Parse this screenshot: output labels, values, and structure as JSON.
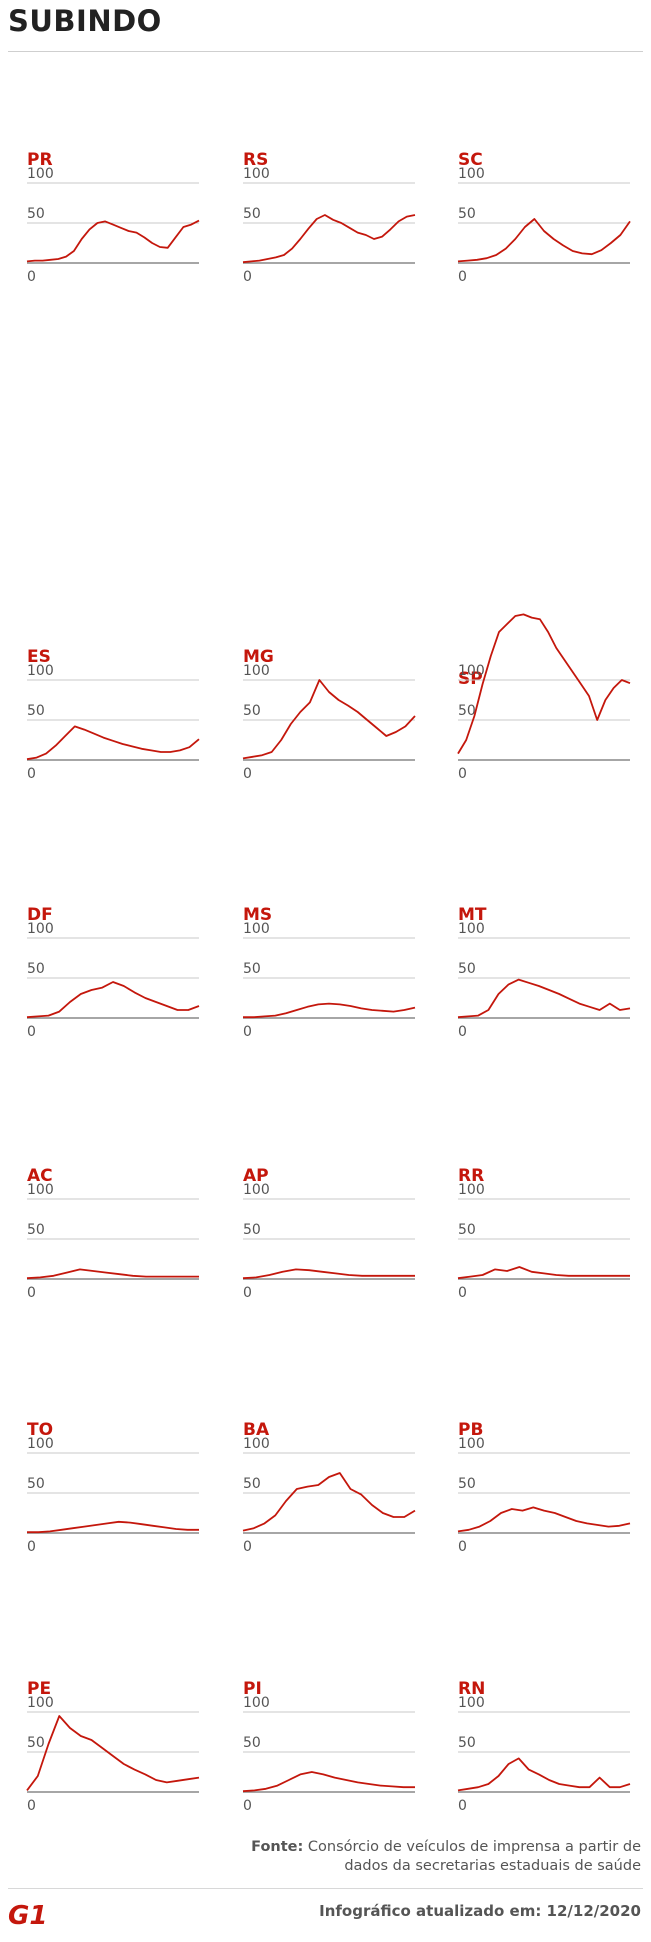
{
  "header": {
    "title": "SUBINDO"
  },
  "footer": {
    "source_label": "Fonte:",
    "source_text": "Consórcio de veículos de imprensa a partir de dados da secretarias estaduais de saúde",
    "logo_text": "G1",
    "updated": "Infográfico atualizado em: 12/12/2020"
  },
  "colors": {
    "series": "#c4170c",
    "label": "#c4170c",
    "grid": "#c8c8c8",
    "baseline": "#888888"
  },
  "chart_data": [
    {
      "type": "line",
      "title": "PR",
      "yticks": [
        0,
        50,
        100
      ],
      "values": [
        2,
        3,
        3,
        4,
        5,
        8,
        15,
        30,
        42,
        50,
        52,
        48,
        44,
        40,
        38,
        32,
        25,
        20,
        19,
        32,
        45,
        48,
        53
      ]
    },
    {
      "type": "line",
      "title": "RS",
      "yticks": [
        0,
        50,
        100
      ],
      "values": [
        1,
        2,
        3,
        5,
        7,
        10,
        18,
        30,
        43,
        55,
        60,
        54,
        50,
        44,
        38,
        35,
        30,
        33,
        42,
        52,
        58,
        60
      ]
    },
    {
      "type": "line",
      "title": "SC",
      "yticks": [
        0,
        50,
        100
      ],
      "values": [
        2,
        3,
        4,
        6,
        10,
        18,
        30,
        45,
        55,
        40,
        30,
        22,
        15,
        12,
        11,
        16,
        25,
        35,
        52
      ]
    },
    {
      "type": "line",
      "title": "SP",
      "yticks": [
        0,
        50,
        100
      ],
      "values": [
        8,
        25,
        55,
        95,
        130,
        160,
        170,
        180,
        182,
        178,
        176,
        160,
        140,
        125,
        110,
        95,
        80,
        50,
        75,
        90,
        100,
        96
      ]
    },
    {
      "type": "line",
      "title": "ES",
      "yticks": [
        0,
        50,
        100
      ],
      "values": [
        1,
        3,
        8,
        18,
        30,
        42,
        38,
        33,
        28,
        24,
        20,
        17,
        14,
        12,
        10,
        10,
        12,
        16,
        26
      ]
    },
    {
      "type": "line",
      "title": "MG",
      "yticks": [
        0,
        50,
        100
      ],
      "values": [
        2,
        4,
        6,
        10,
        25,
        45,
        60,
        72,
        100,
        85,
        75,
        68,
        60,
        50,
        40,
        30,
        35,
        42,
        55
      ]
    },
    {
      "type": "line",
      "title": "DF",
      "yticks": [
        0,
        50,
        100
      ],
      "values": [
        1,
        2,
        3,
        8,
        20,
        30,
        35,
        38,
        45,
        40,
        32,
        25,
        20,
        15,
        10,
        10,
        15
      ]
    },
    {
      "type": "line",
      "title": "MS",
      "yticks": [
        0,
        50,
        100
      ],
      "values": [
        1,
        1,
        2,
        3,
        6,
        10,
        14,
        17,
        18,
        17,
        15,
        12,
        10,
        9,
        8,
        10,
        13
      ]
    },
    {
      "type": "line",
      "title": "MT",
      "yticks": [
        0,
        50,
        100
      ],
      "values": [
        1,
        2,
        3,
        10,
        30,
        42,
        48,
        44,
        40,
        35,
        30,
        24,
        18,
        14,
        10,
        18,
        10,
        12
      ]
    },
    {
      "type": "line",
      "title": "AC",
      "yticks": [
        0,
        50,
        100
      ],
      "values": [
        1,
        2,
        4,
        8,
        12,
        10,
        8,
        6,
        4,
        3,
        3,
        3,
        3,
        3
      ]
    },
    {
      "type": "line",
      "title": "AP",
      "yticks": [
        0,
        50,
        100
      ],
      "values": [
        1,
        2,
        5,
        9,
        12,
        11,
        9,
        7,
        5,
        4,
        4,
        4,
        4,
        4
      ]
    },
    {
      "type": "line",
      "title": "RR",
      "yticks": [
        0,
        50,
        100
      ],
      "values": [
        1,
        3,
        5,
        12,
        10,
        15,
        9,
        7,
        5,
        4,
        4,
        4,
        4,
        4,
        4
      ]
    },
    {
      "type": "line",
      "title": "TO",
      "yticks": [
        0,
        50,
        100
      ],
      "values": [
        1,
        1,
        2,
        4,
        6,
        8,
        10,
        12,
        14,
        13,
        11,
        9,
        7,
        5,
        4,
        4
      ]
    },
    {
      "type": "line",
      "title": "BA",
      "yticks": [
        0,
        50,
        100
      ],
      "values": [
        3,
        6,
        12,
        22,
        40,
        55,
        58,
        60,
        70,
        75,
        55,
        48,
        35,
        25,
        20,
        20,
        28
      ]
    },
    {
      "type": "line",
      "title": "PB",
      "yticks": [
        0,
        50,
        100
      ],
      "values": [
        2,
        4,
        8,
        15,
        25,
        30,
        28,
        32,
        28,
        25,
        20,
        15,
        12,
        10,
        8,
        9,
        12
      ]
    },
    {
      "type": "line",
      "title": "PE",
      "yticks": [
        0,
        50,
        100
      ],
      "values": [
        2,
        20,
        60,
        95,
        80,
        70,
        65,
        55,
        45,
        35,
        28,
        22,
        15,
        12,
        14,
        16,
        18
      ]
    },
    {
      "type": "line",
      "title": "PI",
      "yticks": [
        0,
        50,
        100
      ],
      "values": [
        1,
        2,
        4,
        8,
        15,
        22,
        25,
        22,
        18,
        15,
        12,
        10,
        8,
        7,
        6,
        6
      ]
    },
    {
      "type": "line",
      "title": "RN",
      "yticks": [
        0,
        50,
        100
      ],
      "values": [
        2,
        4,
        6,
        10,
        20,
        35,
        42,
        28,
        22,
        15,
        10,
        8,
        6,
        6,
        18,
        6,
        6,
        10
      ]
    }
  ]
}
